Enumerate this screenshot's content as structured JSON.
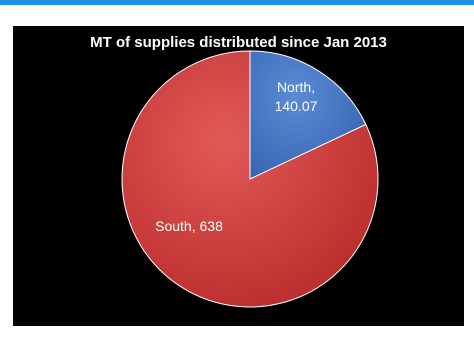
{
  "chart_data": {
    "type": "pie",
    "title": "MT of supplies distributed since Jan 2013",
    "slices": [
      {
        "name": "North",
        "value": 140.07,
        "label_lines": [
          "North,",
          "140.07"
        ],
        "color": "#4a7bc8"
      },
      {
        "name": "South",
        "value": 638,
        "label_lines": [
          "South,  638"
        ],
        "color": "#cf3a3a"
      }
    ],
    "background": "#000000",
    "legend": "none"
  },
  "frame": {
    "accent_color": "#1e8fe6"
  }
}
